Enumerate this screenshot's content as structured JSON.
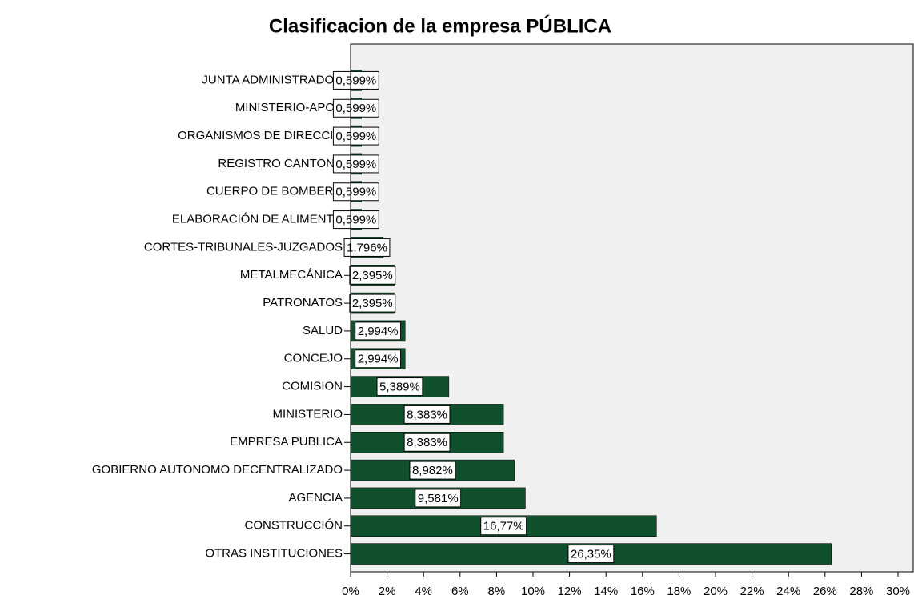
{
  "chart_data": {
    "type": "barh",
    "title": "Clasificacion de la empresa PÚBLICA",
    "categories": [
      "JUNTA ADMINISTRADOR",
      "MINISTERIO-APOY",
      "ORGANISMOS DE DIRECCIO",
      "REGISTRO CANTONA",
      "CUERPO DE BOMBERO",
      "ELABORACIÓN DE ALIMENTO",
      "CORTES-TRIBUNALES-JUZGADOS",
      "METALMECÁNICA",
      "PATRONATOS",
      "SALUD",
      "CONCEJO",
      "COMISION",
      "MINISTERIO",
      "EMPRESA PUBLICA",
      "GOBIERNO AUTONOMO DECENTRALIZADO",
      "AGENCIA",
      "CONSTRUCCIÓN",
      "OTRAS INSTITUCIONES"
    ],
    "values": [
      0.599,
      0.599,
      0.599,
      0.599,
      0.599,
      0.599,
      1.796,
      2.395,
      2.395,
      2.994,
      2.994,
      5.389,
      8.383,
      8.383,
      8.982,
      9.581,
      16.77,
      26.35
    ],
    "value_labels": [
      "0,599%",
      "0,599%",
      "0,599%",
      "0,599%",
      "0,599%",
      "0,599%",
      "1,796%",
      "2,395%",
      "2,395%",
      "2,994%",
      "2,994%",
      "5,389%",
      "8,383%",
      "8,383%",
      "8,982%",
      "9,581%",
      "16,77%",
      "26,35%"
    ],
    "color": "#11502d",
    "xlim": [
      0,
      30
    ],
    "xticks": [
      {
        "value": 0,
        "label": "0%"
      },
      {
        "value": 2,
        "label": "2%"
      },
      {
        "value": 4,
        "label": "4%"
      },
      {
        "value": 6,
        "label": "6%"
      },
      {
        "value": 8,
        "label": "8%"
      },
      {
        "value": 10,
        "label": "10%"
      },
      {
        "value": 12,
        "label": "12%"
      },
      {
        "value": 14,
        "label": "14%"
      },
      {
        "value": 16,
        "label": "16%"
      },
      {
        "value": 18,
        "label": "18%"
      },
      {
        "value": 20,
        "label": "20%"
      },
      {
        "value": 22,
        "label": "22%"
      },
      {
        "value": 24,
        "label": "24%"
      },
      {
        "value": 26,
        "label": "26%"
      },
      {
        "value": 28,
        "label": "28%"
      },
      {
        "value": 30,
        "label": "30%"
      }
    ]
  }
}
